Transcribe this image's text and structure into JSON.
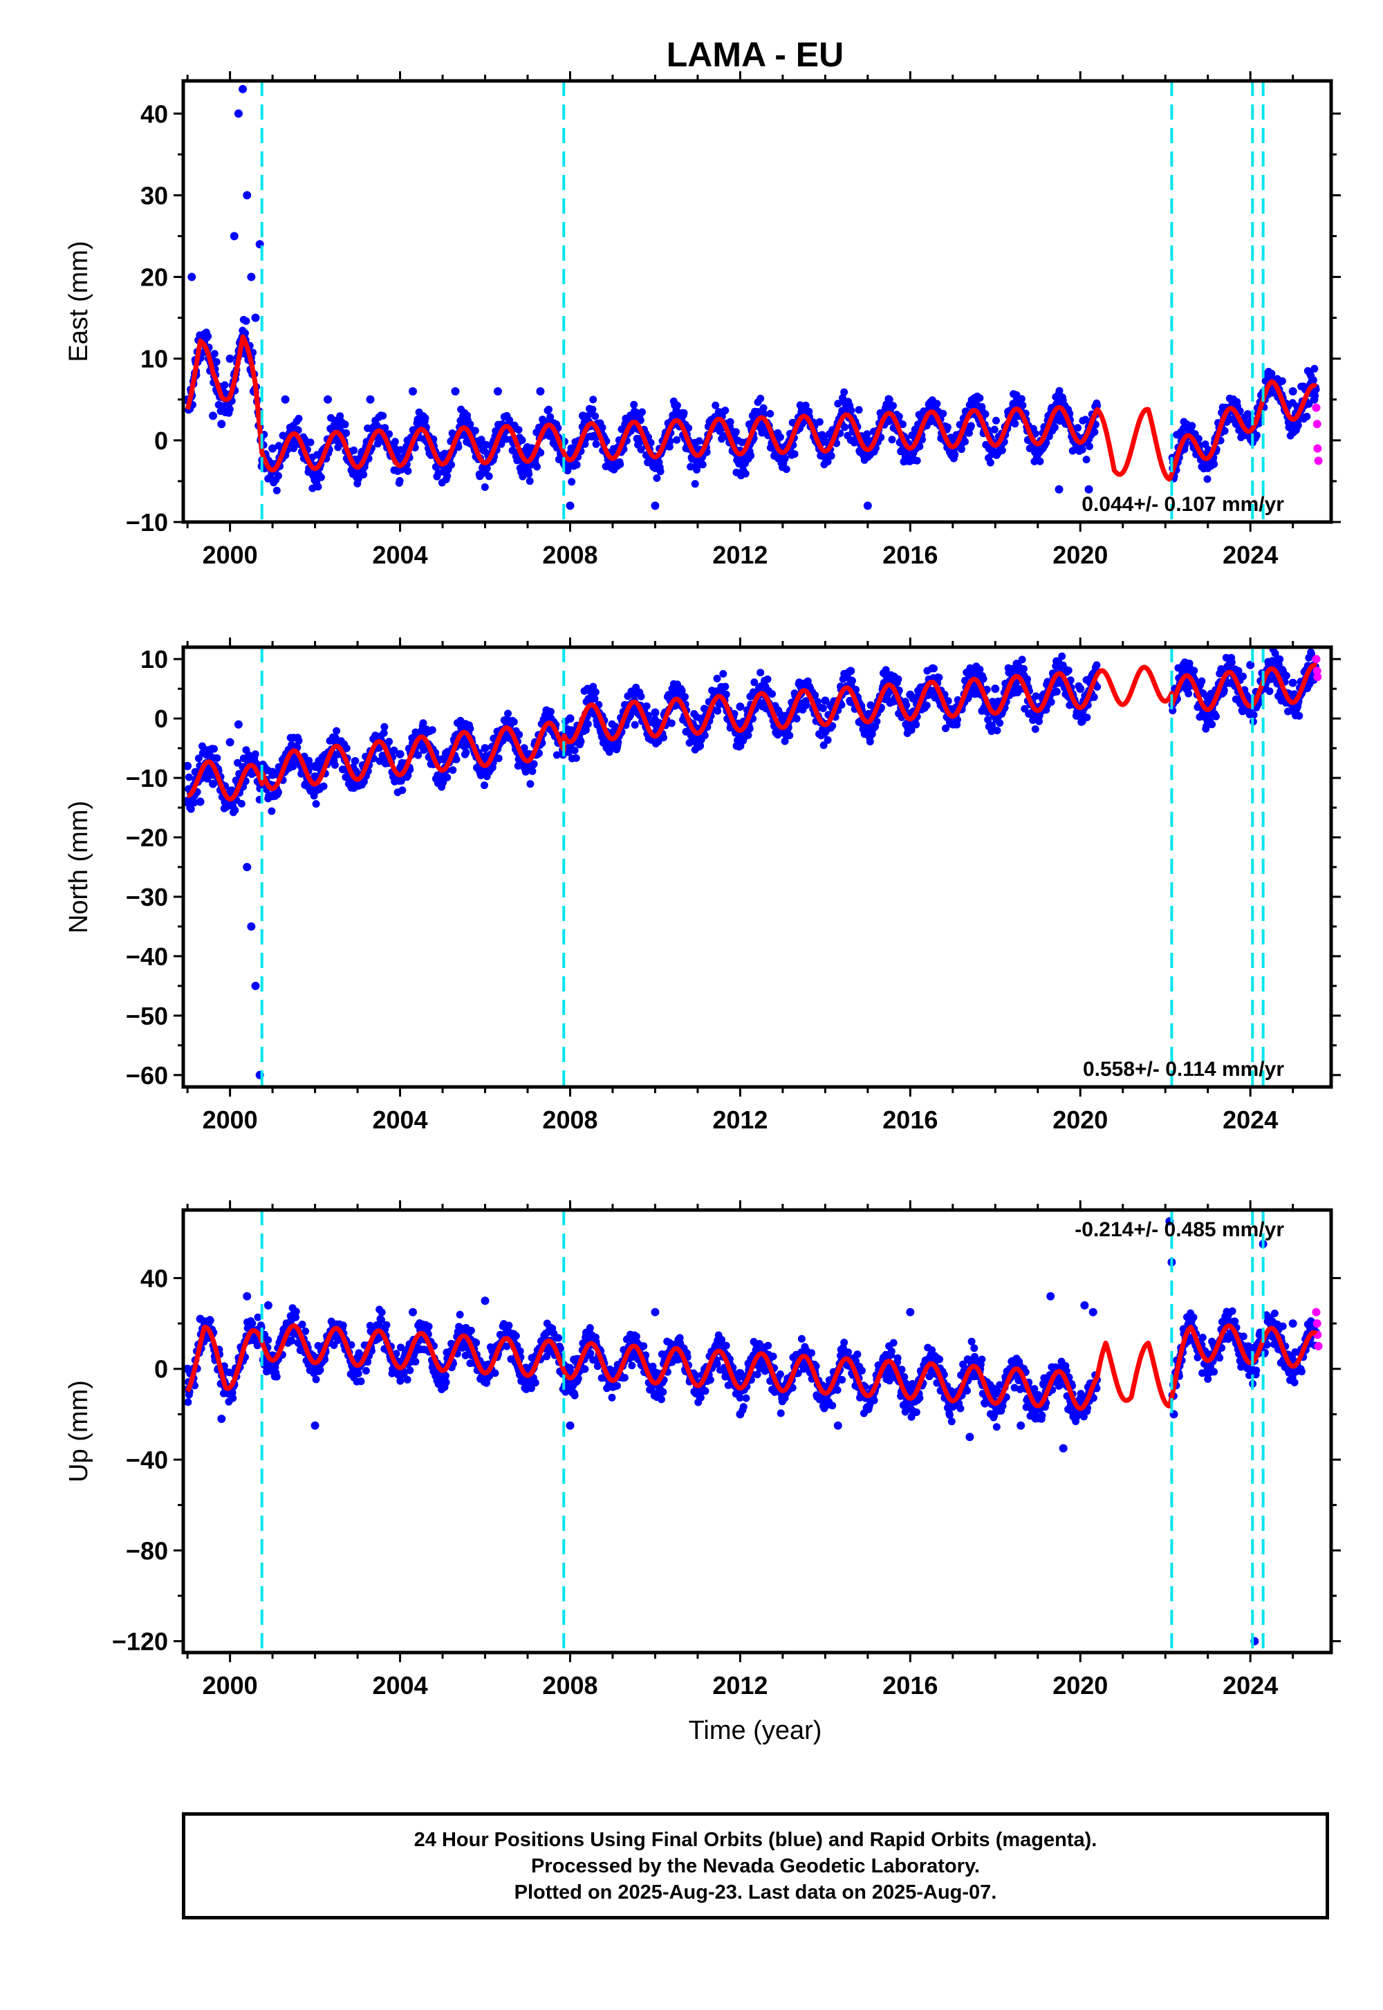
{
  "title": "LAMA - EU",
  "xlabel": "Time (year)",
  "caption": {
    "line1": "24 Hour Positions Using Final Orbits (blue) and Rapid Orbits (magenta).",
    "line2": "Processed by the Nevada Geodetic Laboratory.",
    "line3": "Plotted on 2025-Aug-23. Last data on 2025-Aug-07."
  },
  "colors": {
    "final_orbits": "#0000ff",
    "rapid_orbits": "#ff00ff",
    "model": "#ff0000",
    "steps": "#00e5ee",
    "frame": "#000000"
  },
  "chart_data": [
    {
      "type": "scatter",
      "component": "east",
      "ylabel": "East (mm)",
      "xlim": [
        1998.9,
        2025.9
      ],
      "ylim": [
        -10,
        44
      ],
      "xticks": [
        2000,
        2004,
        2008,
        2012,
        2016,
        2020,
        2024
      ],
      "yticks": [
        -10,
        0,
        10,
        20,
        30,
        40
      ],
      "velocity_label": "0.044+/- 0.107 mm/yr",
      "velocity_label_position": "bottom-right",
      "step_lines": [
        2000.75,
        2007.85,
        2022.15,
        2024.05,
        2024.3
      ],
      "data_gap": [
        2020.4,
        2022.15
      ],
      "model": [
        [
          1999.0,
          6.0
        ],
        [
          1999.3,
          11.5
        ],
        [
          1999.6,
          6.5
        ],
        [
          1999.8,
          6.0
        ],
        [
          2000.0,
          7.5
        ],
        [
          2000.3,
          12.0
        ],
        [
          2000.6,
          5.0
        ],
        [
          2000.75,
          -1.5
        ],
        [
          2020.4,
          2.0
        ],
        [
          2020.8,
          -3.0
        ],
        [
          2021.6,
          2.0
        ],
        [
          2022.1,
          -3.0
        ],
        [
          2024.5,
          5.0
        ],
        [
          2025.55,
          4.5
        ]
      ],
      "series": [
        {
          "name": "Final Orbits (blue)",
          "color": "#0000ff",
          "points": [
            [
              1999.0,
              5.0
            ],
            [
              1999.1,
              20.0
            ],
            [
              1999.2,
              8.0
            ],
            [
              1999.4,
              13.0
            ],
            [
              1999.6,
              3.0
            ],
            [
              1999.8,
              2.0
            ],
            [
              2000.0,
              10.0
            ],
            [
              2000.1,
              25.0
            ],
            [
              2000.2,
              40.0
            ],
            [
              2000.3,
              43.0
            ],
            [
              2000.4,
              30.0
            ],
            [
              2000.5,
              20.0
            ],
            [
              2000.6,
              15.0
            ],
            [
              2000.7,
              24.0
            ],
            [
              2001.0,
              -1.0
            ],
            [
              2001.3,
              5.0
            ],
            [
              2002.3,
              5.0
            ],
            [
              2003.3,
              5.0
            ],
            [
              2004.3,
              6.0
            ],
            [
              2005.3,
              6.0
            ],
            [
              2006.3,
              6.0
            ],
            [
              2007.3,
              6.0
            ],
            [
              2008.0,
              -8.0
            ],
            [
              2008.3,
              3.0
            ],
            [
              2009.3,
              2.0
            ],
            [
              2010.0,
              -8.0
            ],
            [
              2012.3,
              3.0
            ],
            [
              2015.0,
              -8.0
            ],
            [
              2018.3,
              2.0
            ],
            [
              2019.5,
              -6.0
            ],
            [
              2020.2,
              -6.0
            ],
            [
              2024.5,
              7.0
            ],
            [
              2025.0,
              6.0
            ],
            [
              2025.5,
              5.0
            ]
          ]
        },
        {
          "name": "Rapid Orbits (magenta)",
          "color": "#ff00ff",
          "points": [
            [
              2025.55,
              4.0
            ],
            [
              2025.57,
              2.0
            ],
            [
              2025.58,
              -1.0
            ],
            [
              2025.6,
              -2.5
            ]
          ]
        }
      ]
    },
    {
      "type": "scatter",
      "component": "north",
      "ylabel": "North (mm)",
      "xlim": [
        1998.9,
        2025.9
      ],
      "ylim": [
        -62,
        12
      ],
      "xticks": [
        2000,
        2004,
        2008,
        2012,
        2016,
        2020,
        2024
      ],
      "yticks": [
        -60,
        -50,
        -40,
        -30,
        -20,
        -10,
        0,
        10
      ],
      "velocity_label": "0.558+/- 0.114 mm/yr",
      "velocity_label_position": "bottom-right",
      "step_lines": [
        2000.75,
        2007.85,
        2022.15,
        2024.05,
        2024.3
      ],
      "data_gap": [
        2020.4,
        2022.15
      ],
      "model": [
        [
          1999.0,
          -10.0
        ],
        [
          2000.75,
          -11.0
        ],
        [
          2000.76,
          -9.0
        ],
        [
          2007.85,
          -3.5
        ],
        [
          2007.86,
          -1.0
        ],
        [
          2020.4,
          5.0
        ],
        [
          2022.15,
          6.0
        ],
        [
          2022.16,
          4.0
        ],
        [
          2025.55,
          6.0
        ]
      ],
      "series": [
        {
          "name": "Final Orbits (blue)",
          "color": "#0000ff",
          "points": [
            [
              1999.0,
              -8.0
            ],
            [
              1999.3,
              -14.0
            ],
            [
              1999.6,
              -11.0
            ],
            [
              2000.0,
              -4.0
            ],
            [
              2000.2,
              -1.0
            ],
            [
              2000.4,
              -25.0
            ],
            [
              2000.5,
              -35.0
            ],
            [
              2000.6,
              -45.0
            ],
            [
              2000.7,
              -60.0
            ],
            [
              2001.0,
              -9.0
            ],
            [
              2002.0,
              -8.0
            ],
            [
              2004.0,
              -6.0
            ],
            [
              2006.0,
              -5.0
            ],
            [
              2007.8,
              -3.0
            ],
            [
              2008.0,
              0.0
            ],
            [
              2010.0,
              1.0
            ],
            [
              2012.0,
              2.0
            ],
            [
              2014.0,
              3.0
            ],
            [
              2014.6,
              8.0
            ],
            [
              2016.0,
              4.0
            ],
            [
              2018.0,
              5.0
            ],
            [
              2020.0,
              5.0
            ],
            [
              2022.5,
              5.0
            ],
            [
              2024.0,
              9.0
            ],
            [
              2025.0,
              6.0
            ]
          ]
        },
        {
          "name": "Rapid Orbits (magenta)",
          "color": "#ff00ff",
          "points": [
            [
              2025.55,
              10.0
            ],
            [
              2025.57,
              8.0
            ],
            [
              2025.58,
              7.0
            ]
          ]
        }
      ]
    },
    {
      "type": "scatter",
      "component": "up",
      "ylabel": "Up (mm)",
      "xlim": [
        1998.9,
        2025.9
      ],
      "ylim": [
        -125,
        70
      ],
      "xticks": [
        2000,
        2004,
        2008,
        2012,
        2016,
        2020,
        2024
      ],
      "yticks": [
        -120,
        -80,
        -40,
        0,
        40
      ],
      "velocity_label": "-0.214+/- 0.485 mm/yr",
      "velocity_label_position": "top-right",
      "step_lines": [
        2000.75,
        2007.85,
        2022.15,
        2024.05,
        2024.3
      ],
      "data_gap": [
        2020.4,
        2022.15
      ],
      "model": [
        [
          1999.0,
          -2.0
        ],
        [
          1999.4,
          12.0
        ],
        [
          1999.9,
          -2.0
        ],
        [
          2000.7,
          12.0
        ],
        [
          2020.4,
          -10.0
        ],
        [
          2020.6,
          5.0
        ],
        [
          2021.2,
          -10.0
        ],
        [
          2021.6,
          5.0
        ],
        [
          2022.1,
          -10.0
        ],
        [
          2022.6,
          12.0
        ],
        [
          2024.5,
          10.0
        ],
        [
          2025.55,
          8.0
        ]
      ],
      "series": [
        {
          "name": "Final Orbits (blue)",
          "color": "#0000ff",
          "points": [
            [
              1999.0,
              0.0
            ],
            [
              1999.3,
              22.0
            ],
            [
              1999.8,
              -22.0
            ],
            [
              2000.4,
              32.0
            ],
            [
              2000.9,
              28.0
            ],
            [
              2002.0,
              -25.0
            ],
            [
              2004.3,
              25.0
            ],
            [
              2006.0,
              30.0
            ],
            [
              2008.0,
              -25.0
            ],
            [
              2010.0,
              25.0
            ],
            [
              2012.0,
              -20.0
            ],
            [
              2014.3,
              -25.0
            ],
            [
              2016.0,
              25.0
            ],
            [
              2017.4,
              -30.0
            ],
            [
              2018.6,
              -25.0
            ],
            [
              2019.3,
              32.0
            ],
            [
              2019.6,
              -35.0
            ],
            [
              2020.1,
              28.0
            ],
            [
              2020.3,
              25.0
            ],
            [
              2022.1,
              65.0
            ],
            [
              2022.15,
              47.0
            ],
            [
              2022.2,
              -20.0
            ],
            [
              2024.1,
              -120.0
            ],
            [
              2024.3,
              55.0
            ],
            [
              2025.0,
              20.0
            ]
          ]
        },
        {
          "name": "Rapid Orbits (magenta)",
          "color": "#ff00ff",
          "points": [
            [
              2025.55,
              25.0
            ],
            [
              2025.57,
              20.0
            ],
            [
              2025.58,
              15.0
            ],
            [
              2025.6,
              10.0
            ]
          ]
        }
      ]
    }
  ]
}
